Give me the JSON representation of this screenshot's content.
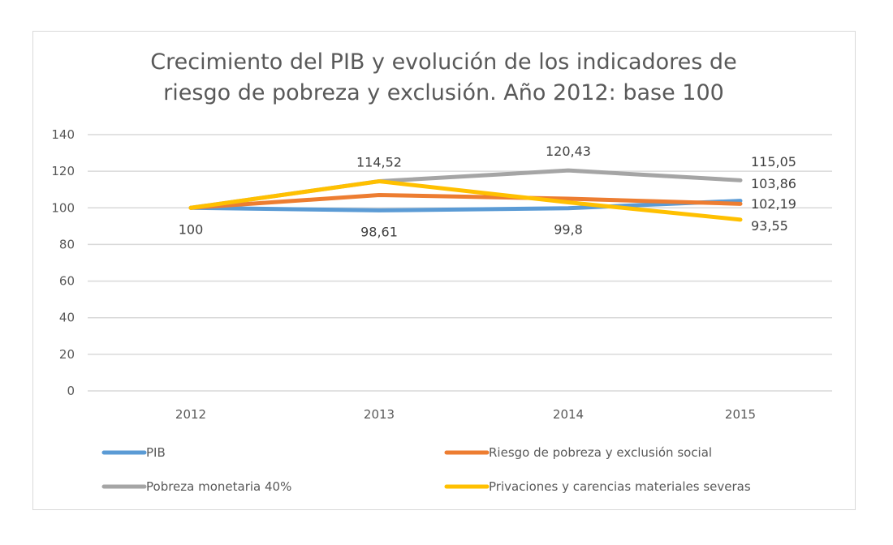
{
  "chart_data": {
    "type": "line",
    "title": "Crecimiento del PIB y evolución de los indicadores de riesgo de pobreza y exclusión. Año 2012: base 100",
    "title_lines": [
      "Crecimiento del PIB y evolución de los indicadores de",
      "riesgo de pobreza y exclusión. Año 2012: base 100"
    ],
    "categories": [
      "2012",
      "2013",
      "2014",
      "2015"
    ],
    "ylim": [
      0,
      140
    ],
    "yticks": [
      "0",
      "20",
      "40",
      "60",
      "80",
      "100",
      "120",
      "140"
    ],
    "grid": true,
    "legend_position": "bottom",
    "series": [
      {
        "name": "PIB",
        "color": "#5b9bd5",
        "values": [
          100,
          98.61,
          99.8,
          103.86
        ]
      },
      {
        "name": "Riesgo de pobreza y exclusión social",
        "color": "#ed7d31",
        "values": [
          100,
          107,
          105,
          102.19
        ]
      },
      {
        "name": "Pobreza monetaria 40%",
        "color": "#a5a5a5",
        "values": [
          100,
          114.52,
          120.43,
          115.05
        ]
      },
      {
        "name": "Privaciones y carencias materiales severas",
        "color": "#ffc000",
        "values": [
          100,
          114.5,
          103,
          93.55
        ]
      }
    ],
    "data_labels": [
      {
        "series": 0,
        "point": 0,
        "text": "100",
        "position": "below"
      },
      {
        "series": 2,
        "point": 1,
        "text": "114,52",
        "position": "above"
      },
      {
        "series": 0,
        "point": 1,
        "text": "98,61",
        "position": "below"
      },
      {
        "series": 2,
        "point": 2,
        "text": "120,43",
        "position": "above"
      },
      {
        "series": 0,
        "point": 2,
        "text": "99,8",
        "position": "below"
      },
      {
        "series": 2,
        "point": 3,
        "text": "115,05",
        "position": "right"
      },
      {
        "series": 0,
        "point": 3,
        "text": "103,86",
        "position": "right"
      },
      {
        "series": 1,
        "point": 3,
        "text": "102,19",
        "position": "right"
      },
      {
        "series": 3,
        "point": 3,
        "text": "93,55",
        "position": "right"
      }
    ]
  }
}
